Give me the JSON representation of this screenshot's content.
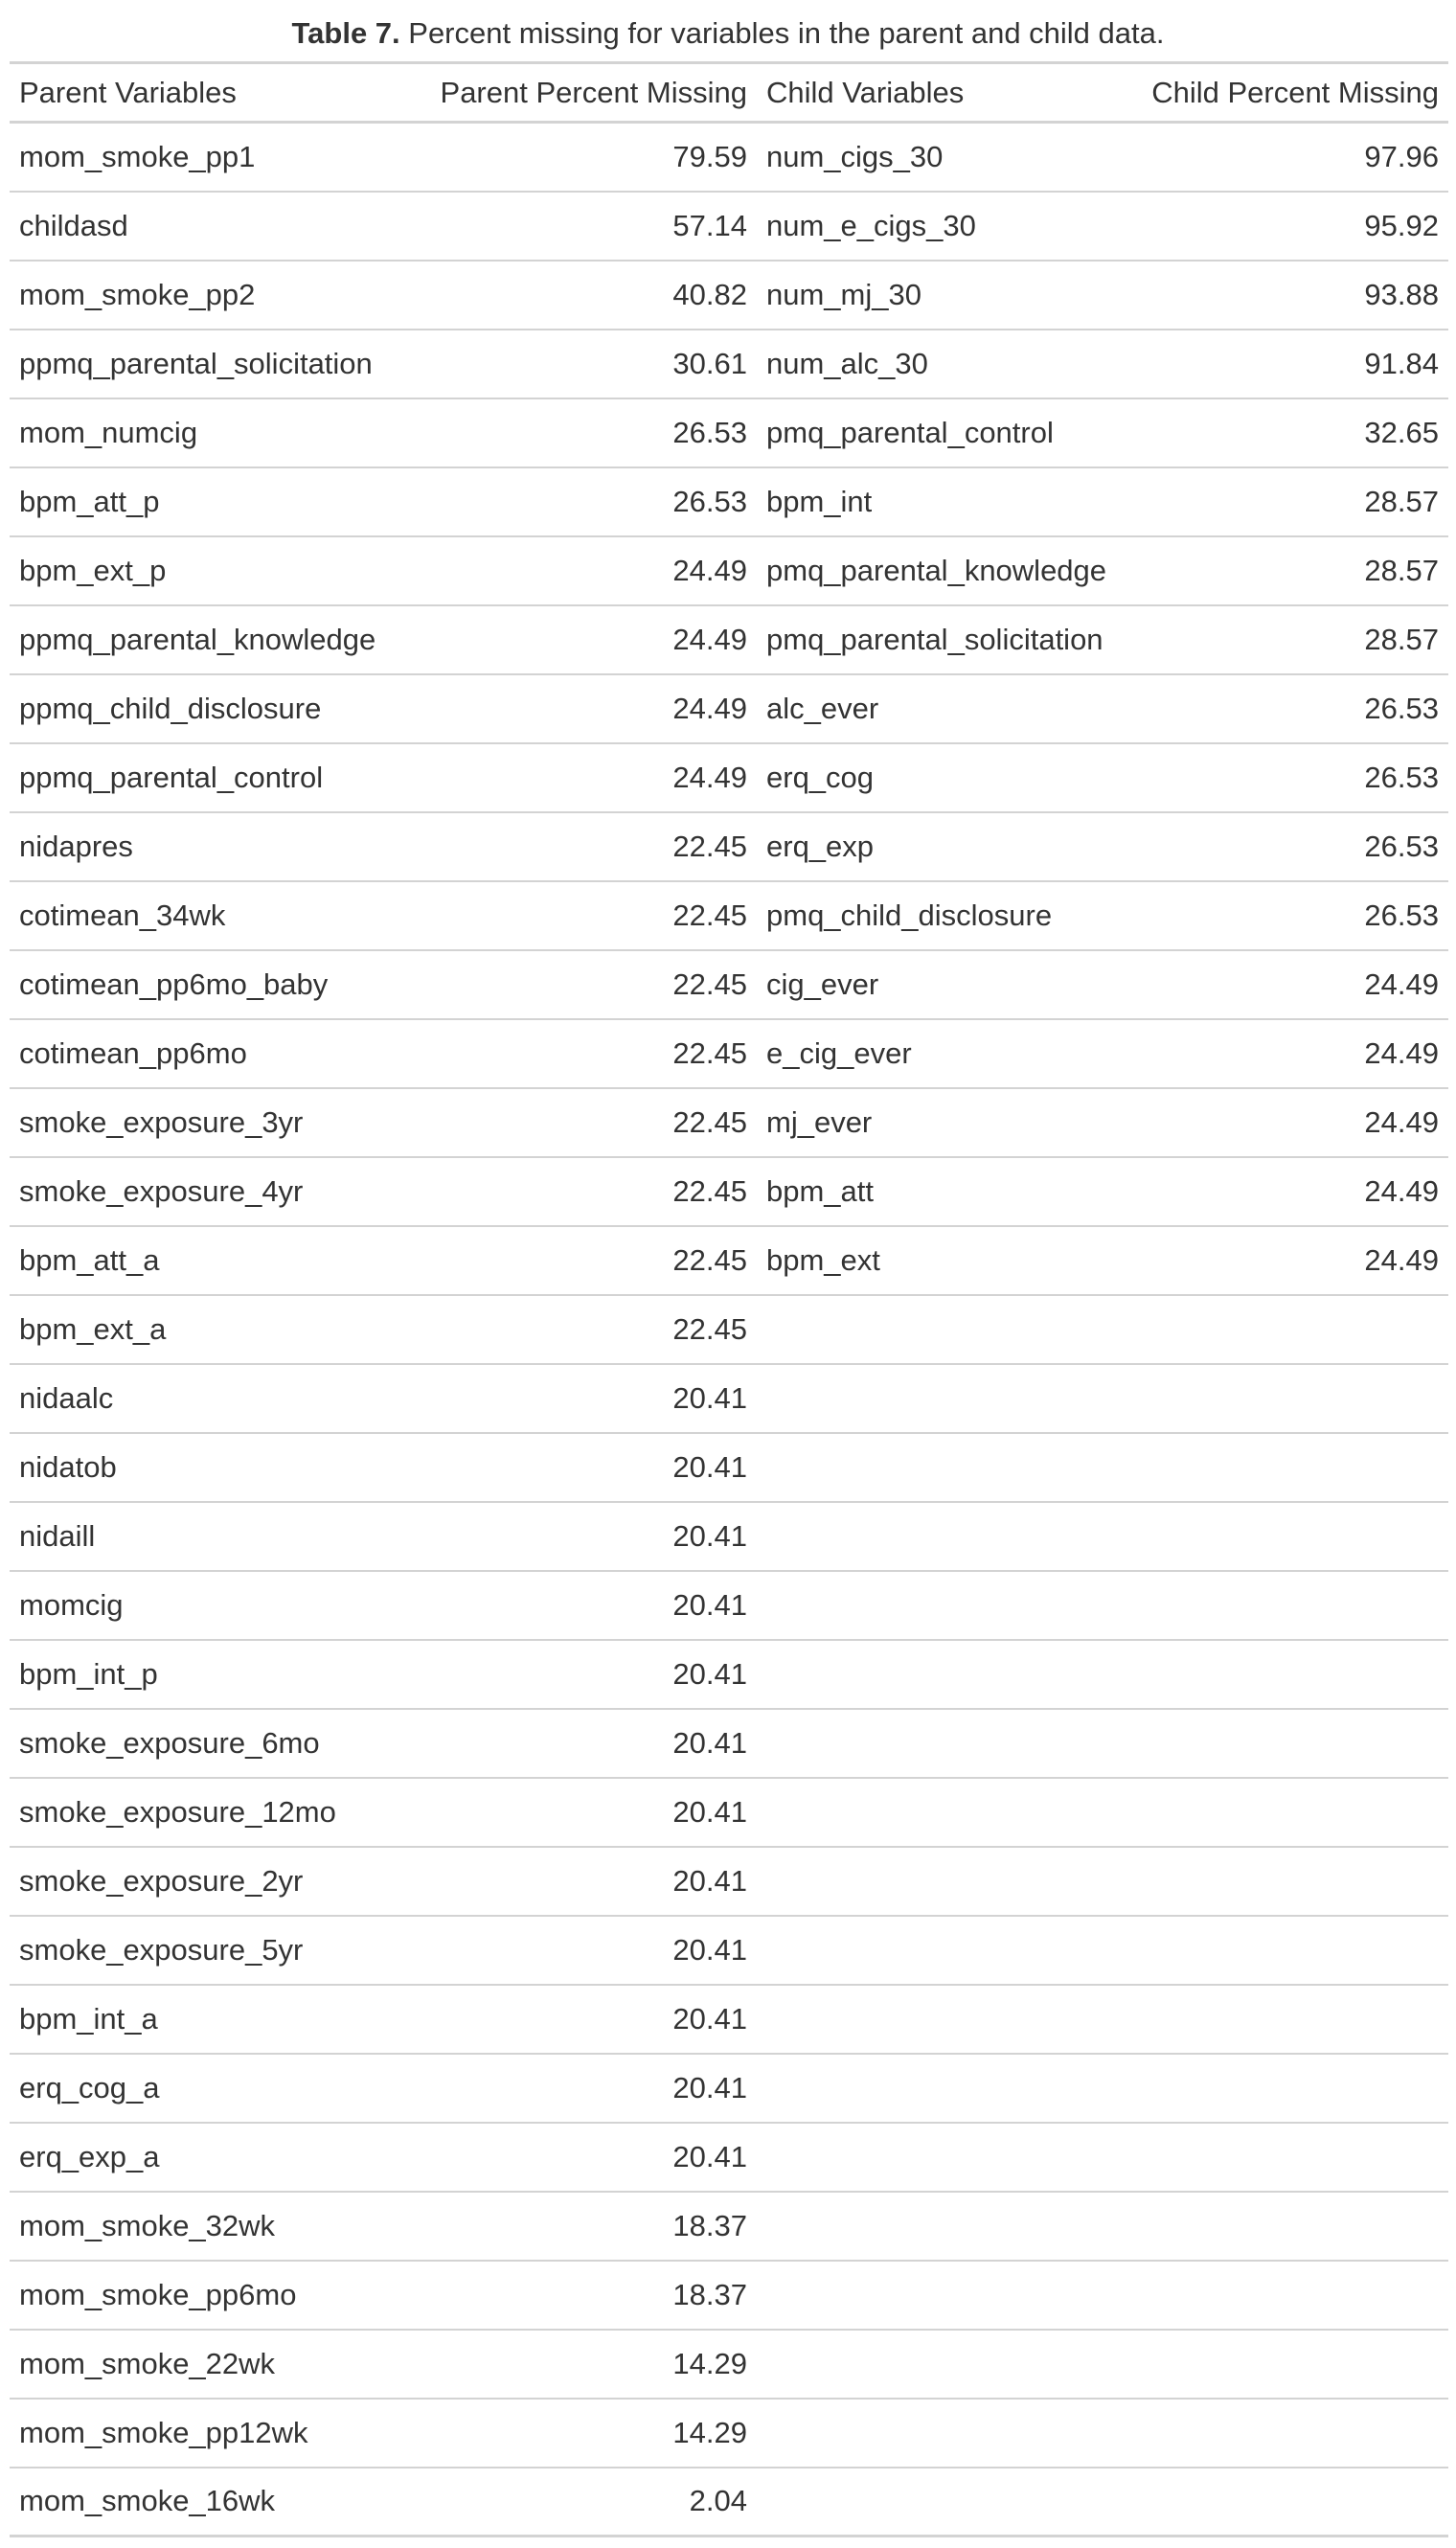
{
  "caption": {
    "label": "Table 7.",
    "text": " Percent missing for variables in the parent and child data."
  },
  "headers": [
    "Parent Variables",
    "Parent Percent Missing",
    "Child Variables",
    "Child Percent Missing"
  ],
  "rows": [
    [
      "mom_smoke_pp1",
      "79.59",
      "num_cigs_30",
      "97.96"
    ],
    [
      "childasd",
      "57.14",
      "num_e_cigs_30",
      "95.92"
    ],
    [
      "mom_smoke_pp2",
      "40.82",
      "num_mj_30",
      "93.88"
    ],
    [
      "ppmq_parental_solicitation",
      "30.61",
      "num_alc_30",
      "91.84"
    ],
    [
      "mom_numcig",
      "26.53",
      "pmq_parental_control",
      "32.65"
    ],
    [
      "bpm_att_p",
      "26.53",
      "bpm_int",
      "28.57"
    ],
    [
      "bpm_ext_p",
      "24.49",
      "pmq_parental_knowledge",
      "28.57"
    ],
    [
      "ppmq_parental_knowledge",
      "24.49",
      "pmq_parental_solicitation",
      "28.57"
    ],
    [
      "ppmq_child_disclosure",
      "24.49",
      "alc_ever",
      "26.53"
    ],
    [
      "ppmq_parental_control",
      "24.49",
      "erq_cog",
      "26.53"
    ],
    [
      "nidapres",
      "22.45",
      "erq_exp",
      "26.53"
    ],
    [
      "cotimean_34wk",
      "22.45",
      "pmq_child_disclosure",
      "26.53"
    ],
    [
      "cotimean_pp6mo_baby",
      "22.45",
      "cig_ever",
      "24.49"
    ],
    [
      "cotimean_pp6mo",
      "22.45",
      "e_cig_ever",
      "24.49"
    ],
    [
      "smoke_exposure_3yr",
      "22.45",
      "mj_ever",
      "24.49"
    ],
    [
      "smoke_exposure_4yr",
      "22.45",
      "bpm_att",
      "24.49"
    ],
    [
      "bpm_att_a",
      "22.45",
      "bpm_ext",
      "24.49"
    ],
    [
      "bpm_ext_a",
      "22.45",
      "",
      ""
    ],
    [
      "nidaalc",
      "20.41",
      "",
      ""
    ],
    [
      "nidatob",
      "20.41",
      "",
      ""
    ],
    [
      "nidaill",
      "20.41",
      "",
      ""
    ],
    [
      "momcig",
      "20.41",
      "",
      ""
    ],
    [
      "bpm_int_p",
      "20.41",
      "",
      ""
    ],
    [
      "smoke_exposure_6mo",
      "20.41",
      "",
      ""
    ],
    [
      "smoke_exposure_12mo",
      "20.41",
      "",
      ""
    ],
    [
      "smoke_exposure_2yr",
      "20.41",
      "",
      ""
    ],
    [
      "smoke_exposure_5yr",
      "20.41",
      "",
      ""
    ],
    [
      "bpm_int_a",
      "20.41",
      "",
      ""
    ],
    [
      "erq_cog_a",
      "20.41",
      "",
      ""
    ],
    [
      "erq_exp_a",
      "20.41",
      "",
      ""
    ],
    [
      "mom_smoke_32wk",
      "18.37",
      "",
      ""
    ],
    [
      "mom_smoke_pp6mo",
      "18.37",
      "",
      ""
    ],
    [
      "mom_smoke_22wk",
      "14.29",
      "",
      ""
    ],
    [
      "mom_smoke_pp12wk",
      "14.29",
      "",
      ""
    ],
    [
      "mom_smoke_16wk",
      "2.04",
      "",
      ""
    ]
  ]
}
